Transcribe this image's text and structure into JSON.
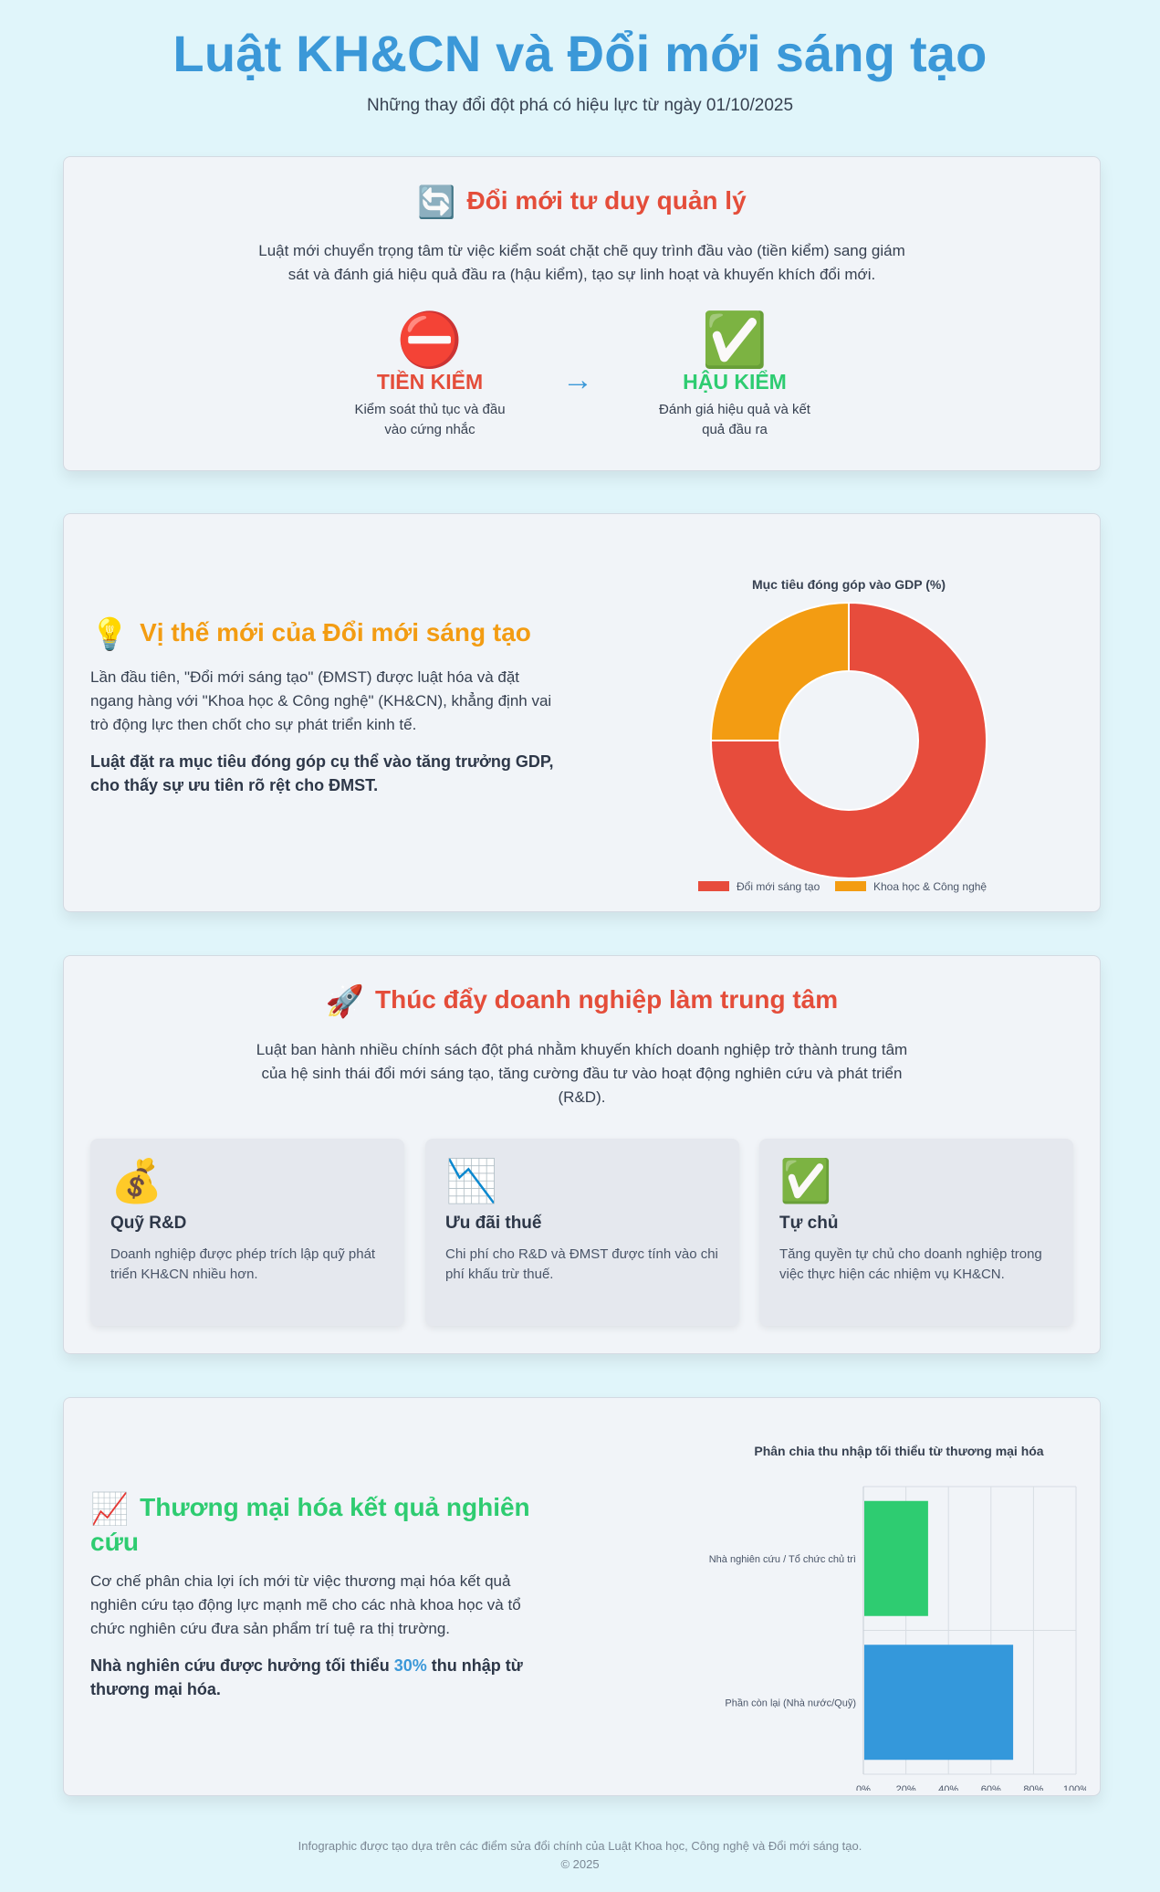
{
  "header": {
    "title": "Luật KH&CN và Đổi mới sáng tạo",
    "subtitle": "Những thay đổi đột phá có hiệu lực từ ngày 01/10/2025"
  },
  "section1": {
    "icon": "🔄",
    "title": "Đổi mới tư duy quản lý",
    "description": "Luật mới chuyển trọng tâm từ việc kiểm soát chặt chẽ quy trình đầu vào (tiền kiểm) sang giám sát và đánh giá hiệu quả đầu ra (hậu kiểm), tạo sự linh hoạt và khuyến khích đổi mới.",
    "from": {
      "icon": "⛔",
      "label": "TIỀN KIỂM",
      "desc": "Kiểm soát thủ tục và đầu vào cứng nhắc"
    },
    "arrow": "→",
    "to": {
      "icon": "✅",
      "label": "HẬU KIỂM",
      "desc": "Đánh giá hiệu quả và kết quả đầu ra"
    }
  },
  "section2": {
    "icon": "💡",
    "title": "Vị thế mới của Đổi mới sáng tạo",
    "paragraph": "Lần đầu tiên, \"Đổi mới sáng tạo\" (ĐMST) được luật hóa và đặt ngang hàng với \"Khoa học & Công nghệ\" (KH&CN), khẳng định vai trò động lực then chốt cho sự phát triển kinh tế.",
    "highlight": "Luật đặt ra mục tiêu đóng góp cụ thể vào tăng trưởng GDP, cho thấy sự ưu tiên rõ rệt cho ĐMST."
  },
  "section3": {
    "icon": "🚀",
    "title": "Thúc đẩy doanh nghiệp làm trung tâm",
    "description": "Luật ban hành nhiều chính sách đột phá nhằm khuyến khích doanh nghiệp trở thành trung tâm của hệ sinh thái đổi mới sáng tạo, tăng cường đầu tư vào hoạt động nghiên cứu và phát triển (R&D).",
    "features": [
      {
        "icon": "💰",
        "title": "Quỹ R&D",
        "desc": "Doanh nghiệp được phép trích lập quỹ phát triển KH&CN nhiều hơn."
      },
      {
        "icon": "📉",
        "title": "Ưu đãi thuế",
        "desc": "Chi phí cho R&D và ĐMST được tính vào chi phí khấu trừ thuế."
      },
      {
        "icon": "✅",
        "title": "Tự chủ",
        "desc": "Tăng quyền tự chủ cho doanh nghiệp trong việc thực hiện các nhiệm vụ KH&CN."
      }
    ]
  },
  "section4": {
    "icon": "📈",
    "title": "Thương mại hóa kết quả nghiên cứu",
    "paragraph": "Cơ chế phân chia lợi ích mới từ việc thương mại hóa kết quả nghiên cứu tạo động lực mạnh mẽ cho các nhà khoa học và tổ chức nghiên cứu đưa sản phẩm trí tuệ ra thị trường.",
    "highlight_pre": "Nhà nghiên cứu được hưởng tối thiểu ",
    "highlight_value": "30%",
    "highlight_post": " thu nhập từ thương mại hóa."
  },
  "chart_data": [
    {
      "type": "pie",
      "variant": "doughnut",
      "title": "Mục tiêu đóng góp vào GDP (%)",
      "categories": [
        "Đổi mới sáng tạo",
        "Khoa học & Công nghệ"
      ],
      "values": [
        75,
        25
      ],
      "colors": [
        "#e74c3c",
        "#f39c12"
      ],
      "legend": "bottom"
    },
    {
      "type": "bar",
      "orientation": "horizontal",
      "title": "Phân chia thu nhập tối thiểu từ thương mại hóa",
      "categories": [
        "Nhà nghiên cứu / Tổ chức chủ trì",
        "Phần còn lại (Nhà nước/Quỹ)"
      ],
      "values": [
        30,
        70
      ],
      "colors": [
        "#2ecc71",
        "#3498db"
      ],
      "xlim": [
        0,
        100
      ],
      "ticks": [
        "0%",
        "20%",
        "40%",
        "60%",
        "80%",
        "100%"
      ],
      "grid": true
    }
  ],
  "colors": {
    "primary": "#3b98d8",
    "red": "#e44d3a",
    "orange": "#f39c12",
    "green": "#2ecc71",
    "background": "#e0f5fa"
  },
  "footer": {
    "line1": "Infographic được tạo dựa trên các điểm sửa đổi chính của Luật Khoa học, Công nghệ và Đổi mới sáng tạo.",
    "line2": "© 2025"
  }
}
